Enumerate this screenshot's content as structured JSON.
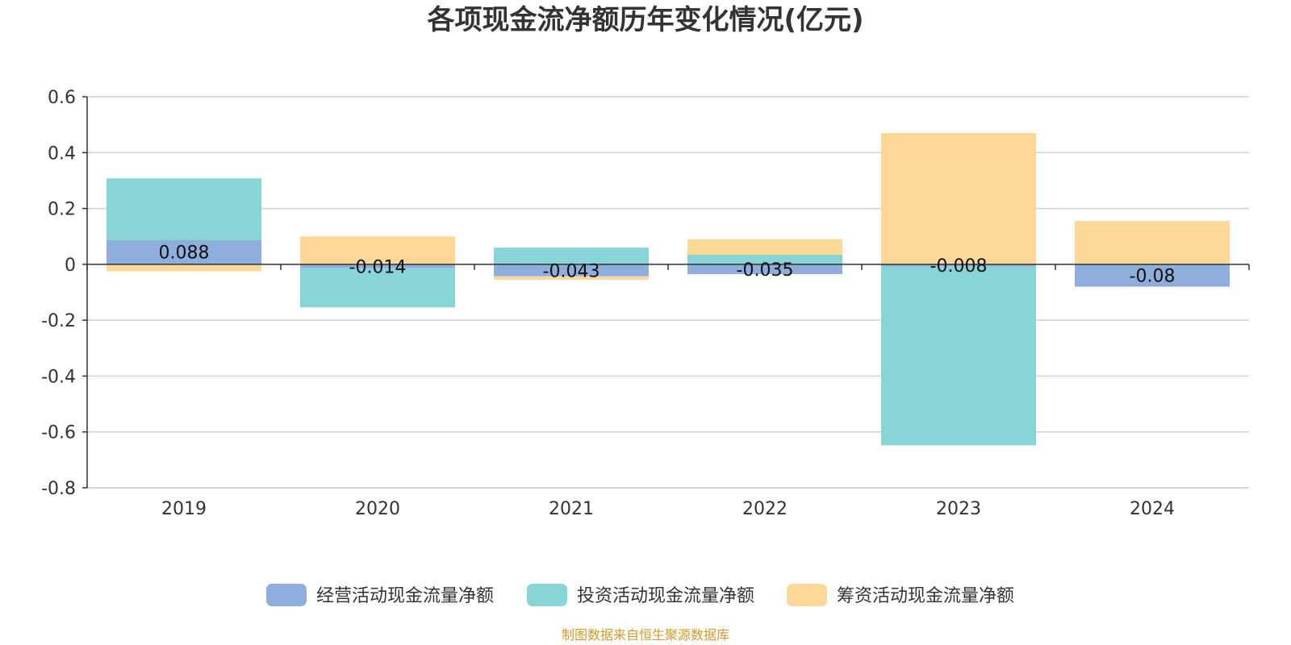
{
  "source_note": "制图数据来自恒生聚源数据库",
  "colors": {
    "operating": "#8eaedc",
    "investing": "#88d5d8",
    "financing": "#fed897",
    "grid": "#d0d0d0",
    "axis": "#333333"
  },
  "chart_data": {
    "type": "bar",
    "stacked": true,
    "title": "各项现金流净额历年变化情况(亿元)",
    "xlabel": "",
    "ylabel": "",
    "categories": [
      "2019",
      "2020",
      "2021",
      "2022",
      "2023",
      "2024"
    ],
    "ylim": [
      -0.8,
      0.6
    ],
    "yticks": [
      0.6,
      0.4,
      0.2,
      0,
      -0.2,
      -0.4,
      -0.6,
      -0.8
    ],
    "ytick_labels": [
      "0.6",
      "0.4",
      "0.2",
      "0",
      "-0.2",
      "-0.4",
      "-0.6",
      "-0.8"
    ],
    "grid": true,
    "legend_position": "bottom-center",
    "series": [
      {
        "name": "经营活动现金流量净额",
        "color_key": "operating",
        "values": [
          0.088,
          -0.014,
          -0.043,
          -0.035,
          -0.008,
          -0.08
        ]
      },
      {
        "name": "投资活动现金流量净额",
        "color_key": "investing",
        "values": [
          0.22,
          -0.14,
          0.06,
          0.035,
          -0.64,
          0
        ]
      },
      {
        "name": "筹资活动现金流量净额",
        "color_key": "financing",
        "values": [
          -0.025,
          0.1,
          -0.012,
          0.055,
          0.47,
          0.155
        ]
      }
    ],
    "data_labels": [
      "0.088",
      "-0.014",
      "-0.043",
      "-0.035",
      "-0.008",
      "-0.08"
    ]
  }
}
